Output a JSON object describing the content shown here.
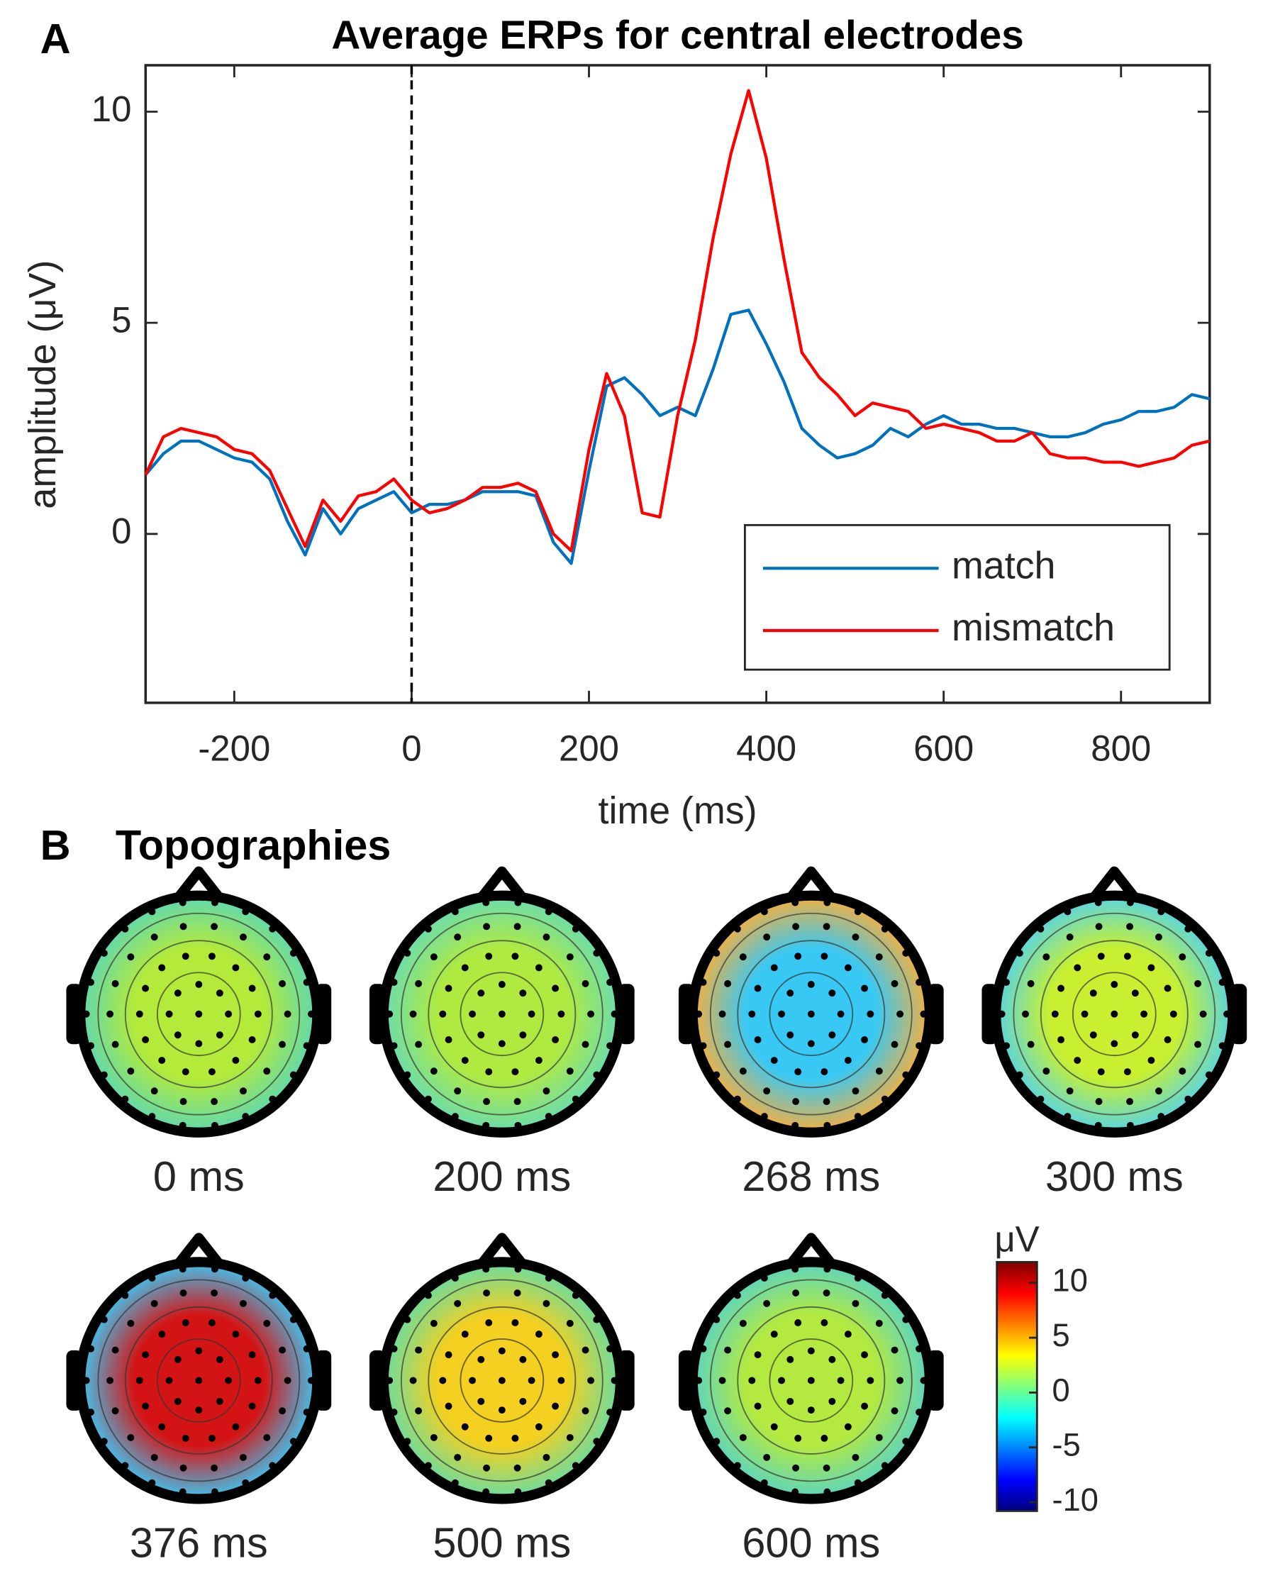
{
  "chart_data": {
    "type": "line",
    "panel_label": "A",
    "title": "Average ERPs for central electrodes",
    "xlabel": "time (ms)",
    "ylabel": "amplitude (μV)",
    "x": [
      -300,
      -280,
      -260,
      -240,
      -220,
      -200,
      -180,
      -160,
      -140,
      -120,
      -100,
      -80,
      -60,
      -40,
      -20,
      0,
      20,
      40,
      60,
      80,
      100,
      120,
      140,
      160,
      180,
      200,
      220,
      240,
      260,
      280,
      300,
      320,
      340,
      360,
      380,
      400,
      420,
      440,
      460,
      480,
      500,
      520,
      540,
      560,
      580,
      600,
      620,
      640,
      660,
      680,
      700,
      720,
      740,
      760,
      780,
      800,
      820,
      840,
      860,
      880,
      900
    ],
    "series": [
      {
        "name": "match",
        "color": "#0072bd",
        "values": [
          1.4,
          1.9,
          2.2,
          2.2,
          2.0,
          1.8,
          1.7,
          1.3,
          0.3,
          -0.5,
          0.6,
          0.0,
          0.6,
          0.8,
          1.0,
          0.5,
          0.7,
          0.7,
          0.8,
          1.0,
          1.0,
          1.0,
          0.9,
          -0.2,
          -0.7,
          1.5,
          3.5,
          3.7,
          3.3,
          2.8,
          3.0,
          2.8,
          3.9,
          5.2,
          5.3,
          4.5,
          3.6,
          2.5,
          2.1,
          1.8,
          1.9,
          2.1,
          2.5,
          2.3,
          2.6,
          2.8,
          2.6,
          2.6,
          2.5,
          2.5,
          2.4,
          2.3,
          2.3,
          2.4,
          2.6,
          2.7,
          2.9,
          2.9,
          3.0,
          3.3,
          3.2
        ]
      },
      {
        "name": "mismatch",
        "color": "#ff0000",
        "values": [
          1.4,
          2.3,
          2.5,
          2.4,
          2.3,
          2.0,
          1.9,
          1.5,
          0.6,
          -0.3,
          0.8,
          0.3,
          0.9,
          1.0,
          1.3,
          0.8,
          0.5,
          0.6,
          0.8,
          1.1,
          1.1,
          1.2,
          1.0,
          0.0,
          -0.4,
          2.0,
          3.8,
          2.8,
          0.5,
          0.4,
          2.8,
          4.6,
          7.0,
          9.0,
          10.5,
          8.9,
          6.5,
          4.3,
          3.7,
          3.3,
          2.8,
          3.1,
          3.0,
          2.9,
          2.5,
          2.6,
          2.5,
          2.4,
          2.2,
          2.2,
          2.4,
          1.9,
          1.8,
          1.8,
          1.7,
          1.7,
          1.6,
          1.7,
          1.8,
          2.1,
          2.2
        ]
      }
    ],
    "xlim": [
      -300,
      900
    ],
    "xticks": [
      -200,
      0,
      200,
      400,
      600,
      800
    ],
    "ylim": [
      -4,
      11.1
    ],
    "yticks": [
      0,
      5,
      10
    ],
    "vline": 0,
    "legend": "lower right",
    "grid": false
  },
  "panel_b": {
    "panel_label": "B",
    "title": "Topographies",
    "maps": [
      {
        "label": "0 ms",
        "colors": [
          "#b4ea3a",
          "#5fd8b0"
        ]
      },
      {
        "label": "200 ms",
        "colors": [
          "#b0ea40",
          "#6adcb0"
        ]
      },
      {
        "label": "268 ms",
        "colors": [
          "#38c8f4",
          "#f4b040"
        ]
      },
      {
        "label": "300 ms",
        "colors": [
          "#c8f030",
          "#58d4e4"
        ]
      },
      {
        "label": "376 ms",
        "colors": [
          "#d41414",
          "#40c4f0"
        ]
      },
      {
        "label": "500 ms",
        "colors": [
          "#f4d020",
          "#6adca0"
        ]
      },
      {
        "label": "600 ms",
        "colors": [
          "#b4ea40",
          "#5cd4c0"
        ]
      }
    ],
    "colorbar": {
      "label": "μV",
      "clim": [
        -10.8,
        11.9
      ],
      "ticks": [
        10,
        5,
        0,
        -5,
        -10
      ]
    }
  }
}
